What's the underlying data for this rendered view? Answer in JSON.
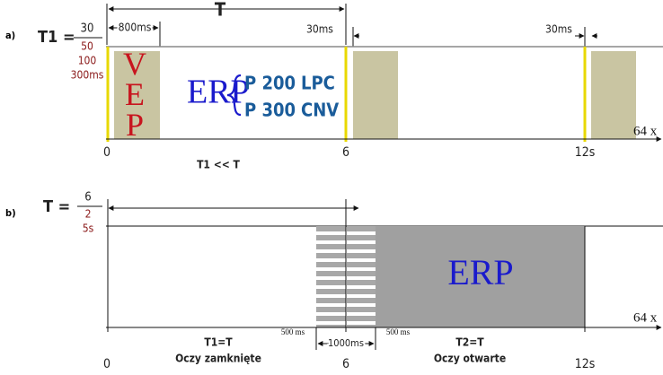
{
  "panel_a": {
    "label": "a)",
    "t1_label": "T1 =",
    "t1_values": [
      "30",
      "50",
      "100",
      "300ms"
    ],
    "period_label": "T",
    "window_label": "800ms",
    "gap_labels": [
      "30ms",
      "30ms"
    ],
    "vep": "VEP",
    "erp": "ERP",
    "components": [
      "P 200",
      "LPC",
      "P 300",
      "CNV"
    ],
    "repeat": "64 x",
    "axis_labels": [
      "0",
      "6",
      "12s"
    ],
    "relation": "T1 << T"
  },
  "panel_b": {
    "label": "b)",
    "t_label": "T =",
    "t_values": [
      "6",
      "2",
      "5s"
    ],
    "erp": "ERP",
    "repeat": "64 x",
    "gap_labels": [
      "500 ms",
      "1000ms",
      "500 ms"
    ],
    "segments": [
      {
        "condition": "T1=T",
        "caption": "Oczy zamknięte"
      },
      {
        "condition": "T2=T",
        "caption": "Oczy otwarte"
      }
    ],
    "axis_labels": [
      "0",
      "6",
      "12s"
    ]
  }
}
